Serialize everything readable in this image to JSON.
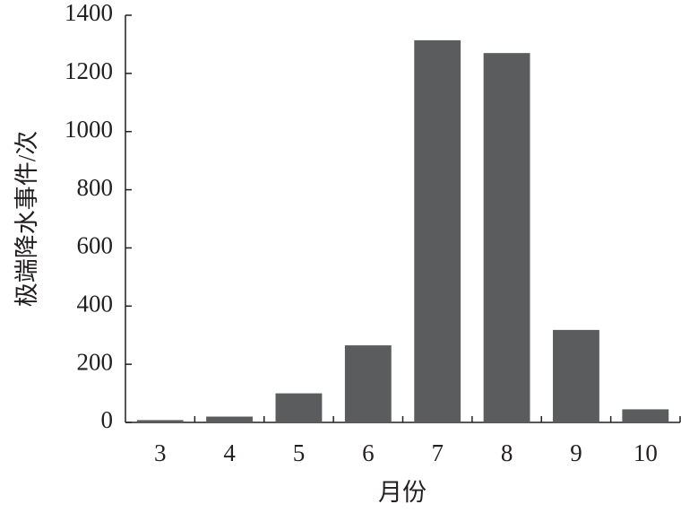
{
  "chart_data": {
    "type": "bar",
    "x_label": "月份",
    "y_label": "极端降水事件/次",
    "categories": [
      "3",
      "4",
      "5",
      "6",
      "7",
      "8",
      "9",
      "10"
    ],
    "values": [
      8,
      20,
      100,
      265,
      1314,
      1270,
      318,
      45
    ],
    "color": "#5b5c5e",
    "ylim": [
      0,
      1400
    ],
    "yticks": [
      0,
      200,
      400,
      600,
      800,
      1000,
      1200,
      1400
    ],
    "grid": false
  }
}
